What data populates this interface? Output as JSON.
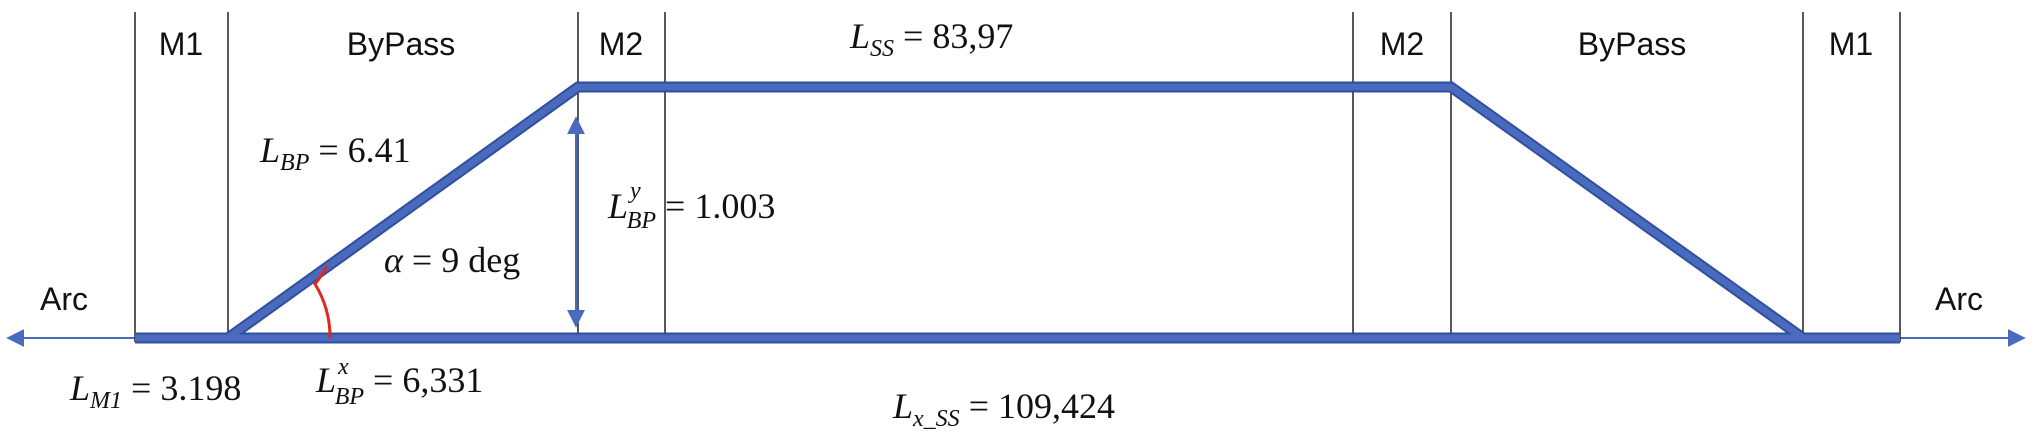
{
  "colors": {
    "track": "#4a6bbd",
    "track_edge": "#2f4f9f",
    "angle_arc": "#e0281e",
    "divider": "#222222",
    "arrow": "#4a6bbd"
  },
  "sections": {
    "left_m1": "M1",
    "left_bypass": "ByPass",
    "left_m2": "M2",
    "right_m2": "M2",
    "right_bypass": "ByPass",
    "right_m1": "M1"
  },
  "arc": {
    "left": "Arc",
    "right": "Arc"
  },
  "labels": {
    "l_ss": {
      "symbol": "L",
      "sub": "SS",
      "rest": " = 83,97"
    },
    "l_bp": {
      "symbol": "L",
      "sub": "BP",
      "rest": " = 6.41"
    },
    "l_bp_y": {
      "symbol": "L",
      "sup": "y",
      "sub": "BP",
      "rest": " =  1.003"
    },
    "alpha": {
      "symbol": "α",
      "rest": " = 9 deg"
    },
    "l_m1": {
      "symbol": "L",
      "sub": "M1",
      "rest": " = 3.198"
    },
    "l_bp_x": {
      "symbol": "L",
      "sup": "x",
      "sub": "BP",
      "rest": " = 6,331"
    },
    "l_x_ss": {
      "symbol": "L",
      "sub": "x_SS",
      "rest": " = 109,424"
    }
  }
}
